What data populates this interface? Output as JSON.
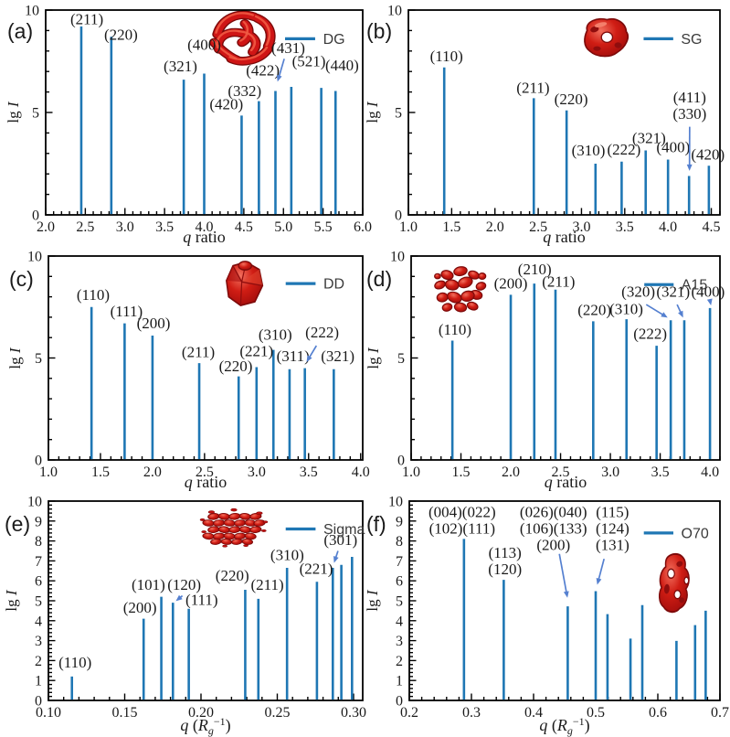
{
  "figure": {
    "bar_color": "#1f77b4",
    "arrow_color": "#5580d0",
    "frame_color": "#000000",
    "label_color": "#1a1a1a",
    "legend_text_color": "#3a3a3a",
    "inset_red": "#d01d14"
  },
  "chart_data": [
    {
      "id": "a",
      "type": "bar",
      "letter": "(a)",
      "legend": "O_DG",
      "legend_label": "DG",
      "legend_v": 8.6,
      "xlabel": "q ratio",
      "xlabel_kind": "ratio",
      "ylabel": "lg I",
      "xlim": [
        2.0,
        6.0
      ],
      "ylim": [
        0,
        10
      ],
      "xtick_start": 2.0,
      "xtick_step": 0.5,
      "xtick_end": 6.0,
      "xtick_decimals": 1,
      "x_minor_step": 0.1,
      "ytick_step": 5,
      "y_minor_step": 1,
      "bars": [
        {
          "q": 2.449,
          "h": 9.2,
          "hkl": "(211)"
        },
        {
          "q": 2.828,
          "h": 8.7,
          "hkl": "(220)"
        },
        {
          "q": 3.742,
          "h": 6.6,
          "hkl": "(321)"
        },
        {
          "q": 4.0,
          "h": 6.9,
          "hkl": "(400)"
        },
        {
          "q": 4.472,
          "h": 4.85,
          "hkl": "(420)"
        },
        {
          "q": 4.69,
          "h": 5.55,
          "hkl": "(332)"
        },
        {
          "q": 4.899,
          "h": 6.05,
          "hkl": "(422)"
        },
        {
          "q": 5.099,
          "h": 6.25,
          "hkl": "(431)"
        },
        {
          "q": 5.477,
          "h": 6.2,
          "hkl": "(521)"
        },
        {
          "q": 5.657,
          "h": 6.05,
          "hkl": "(440)"
        }
      ],
      "labels": [
        {
          "lines": [
            "(211)"
          ],
          "x": 2.52,
          "y": 9.3
        },
        {
          "lines": [
            "(220)"
          ],
          "x": 2.95,
          "y": 8.55
        },
        {
          "lines": [
            "(321)"
          ],
          "x": 3.7,
          "y": 7.0
        },
        {
          "lines": [
            "(400)"
          ],
          "x": 4.0,
          "y": 8.05
        },
        {
          "lines": [
            "(420)"
          ],
          "x": 4.28,
          "y": 5.15
        },
        {
          "lines": [
            "(332)"
          ],
          "x": 4.51,
          "y": 5.8
        },
        {
          "lines": [
            "(422)"
          ],
          "x": 4.74,
          "y": 6.8
        },
        {
          "lines": [
            "(431)"
          ],
          "x": 5.06,
          "y": 7.9
        },
        {
          "lines": [
            "(521)"
          ],
          "x": 5.32,
          "y": 7.25
        },
        {
          "lines": [
            "(440)"
          ],
          "x": 5.74,
          "y": 7.05
        }
      ],
      "arrows": [
        {
          "x1": 5.01,
          "y1": 7.62,
          "x2": 4.925,
          "y2": 6.5
        }
      ]
    },
    {
      "id": "b",
      "type": "bar",
      "letter": "(b)",
      "legend_label": "SG",
      "legend_v": 8.6,
      "xlabel": "q ratio",
      "xlabel_kind": "ratio",
      "ylabel": "lg I",
      "xlim": [
        1.0,
        4.6
      ],
      "ylim": [
        0,
        10
      ],
      "xtick_start": 1.0,
      "xtick_step": 0.5,
      "xtick_end": 4.5,
      "xtick_decimals": 1,
      "x_minor_step": 0.1,
      "ytick_step": 5,
      "y_minor_step": 1,
      "bars": [
        {
          "q": 1.414,
          "h": 7.2,
          "hkl": "(110)"
        },
        {
          "q": 2.449,
          "h": 5.7,
          "hkl": "(211)"
        },
        {
          "q": 2.828,
          "h": 5.1,
          "hkl": "(220)"
        },
        {
          "q": 3.162,
          "h": 2.5,
          "hkl": "(310)"
        },
        {
          "q": 3.464,
          "h": 2.6,
          "hkl": "(222)"
        },
        {
          "q": 3.742,
          "h": 3.15,
          "hkl": "(321)"
        },
        {
          "q": 4.0,
          "h": 2.7,
          "hkl": "(400)"
        },
        {
          "q": 4.243,
          "h": 1.9,
          "hkl": "(411)(330)"
        },
        {
          "q": 4.472,
          "h": 2.4,
          "hkl": "(420)"
        }
      ],
      "labels": [
        {
          "lines": [
            "(110)"
          ],
          "x": 1.44,
          "y": 7.5
        },
        {
          "lines": [
            "(211)"
          ],
          "x": 2.44,
          "y": 5.95
        },
        {
          "lines": [
            "(220)"
          ],
          "x": 2.88,
          "y": 5.4
        },
        {
          "lines": [
            "(310)"
          ],
          "x": 3.08,
          "y": 2.9
        },
        {
          "lines": [
            "(222)"
          ],
          "x": 3.49,
          "y": 2.95
        },
        {
          "lines": [
            "(321)"
          ],
          "x": 3.78,
          "y": 3.5
        },
        {
          "lines": [
            "(400)"
          ],
          "x": 4.06,
          "y": 3.05
        },
        {
          "lines": [
            "(411)",
            "(330)"
          ],
          "x": 4.25,
          "y": 5.5
        },
        {
          "lines": [
            "(420)"
          ],
          "x": 4.46,
          "y": 2.7
        }
      ],
      "arrows": [
        {
          "x1": 4.25,
          "y1": 4.3,
          "x2": 4.248,
          "y2": 2.15
        }
      ]
    },
    {
      "id": "c",
      "type": "bar",
      "letter": "(c)",
      "legend_label": "DD",
      "legend_v": 8.65,
      "xlabel": "q ratio",
      "xlabel_kind": "ratio",
      "ylabel": "lg I",
      "xlim": [
        1.0,
        4.02
      ],
      "ylim": [
        0,
        10
      ],
      "xtick_start": 1.0,
      "xtick_step": 0.5,
      "xtick_end": 4.0,
      "xtick_decimals": 1,
      "x_minor_step": 0.1,
      "ytick_step": 5,
      "y_minor_step": 1,
      "bars": [
        {
          "q": 1.414,
          "h": 7.5,
          "hkl": "(110)"
        },
        {
          "q": 1.732,
          "h": 6.7,
          "hkl": "(111)"
        },
        {
          "q": 2.0,
          "h": 6.1,
          "hkl": "(200)"
        },
        {
          "q": 2.449,
          "h": 4.75,
          "hkl": "(211)"
        },
        {
          "q": 2.828,
          "h": 4.1,
          "hkl": "(220)"
        },
        {
          "q": 3.0,
          "h": 4.55,
          "hkl": "(221)"
        },
        {
          "q": 3.162,
          "h": 5.4,
          "hkl": "(310)"
        },
        {
          "q": 3.317,
          "h": 4.45,
          "hkl": "(311)"
        },
        {
          "q": 3.464,
          "h": 4.5,
          "hkl": "(222)"
        },
        {
          "q": 3.742,
          "h": 4.45,
          "hkl": "(321)"
        }
      ],
      "labels": [
        {
          "lines": [
            "(110)"
          ],
          "x": 1.43,
          "y": 7.85
        },
        {
          "lines": [
            "(111)"
          ],
          "x": 1.75,
          "y": 7.05
        },
        {
          "lines": [
            "(200)"
          ],
          "x": 2.01,
          "y": 6.45
        },
        {
          "lines": [
            "(211)"
          ],
          "x": 2.44,
          "y": 5.05
        },
        {
          "lines": [
            "(220)"
          ],
          "x": 2.8,
          "y": 4.35
        },
        {
          "lines": [
            "(221)"
          ],
          "x": 3.0,
          "y": 5.1
        },
        {
          "lines": [
            "(310)"
          ],
          "x": 3.18,
          "y": 5.9
        },
        {
          "lines": [
            "(311)"
          ],
          "x": 3.35,
          "y": 4.85
        },
        {
          "lines": [
            "(222)"
          ],
          "x": 3.63,
          "y": 6.0
        },
        {
          "lines": [
            "(321)"
          ],
          "x": 3.78,
          "y": 4.85
        }
      ],
      "arrows": [
        {
          "x1": 3.575,
          "y1": 5.6,
          "x2": 3.48,
          "y2": 4.8
        }
      ]
    },
    {
      "id": "d",
      "type": "bar",
      "letter": "(d)",
      "legend_label": "A15",
      "legend_v": 8.6,
      "xlabel": "q ratio",
      "xlabel_kind": "ratio",
      "ylabel": "lg I",
      "xlim": [
        1.0,
        4.1
      ],
      "ylim": [
        0,
        10
      ],
      "xtick_start": 1.0,
      "xtick_step": 0.5,
      "xtick_end": 4.0,
      "xtick_decimals": 1,
      "x_minor_step": 0.1,
      "ytick_step": 5,
      "y_minor_step": 1,
      "bars": [
        {
          "q": 1.414,
          "h": 5.85,
          "hkl": "(110)"
        },
        {
          "q": 2.0,
          "h": 8.1,
          "hkl": "(200)"
        },
        {
          "q": 2.236,
          "h": 8.65,
          "hkl": "(210)"
        },
        {
          "q": 2.449,
          "h": 8.35,
          "hkl": "(211)"
        },
        {
          "q": 2.828,
          "h": 6.8,
          "hkl": "(220)"
        },
        {
          "q": 3.162,
          "h": 6.9,
          "hkl": "(310)"
        },
        {
          "q": 3.464,
          "h": 5.6,
          "hkl": "(222)"
        },
        {
          "q": 3.606,
          "h": 6.85,
          "hkl": "(320)"
        },
        {
          "q": 3.742,
          "h": 6.85,
          "hkl": "(321)"
        },
        {
          "q": 4.0,
          "h": 7.45,
          "hkl": "(400)"
        }
      ],
      "labels": [
        {
          "lines": [
            "(110)"
          ],
          "x": 1.44,
          "y": 6.15
        },
        {
          "lines": [
            "(200)"
          ],
          "x": 2.0,
          "y": 8.4
        },
        {
          "lines": [
            "(210)"
          ],
          "x": 2.24,
          "y": 9.1
        },
        {
          "lines": [
            "(211)"
          ],
          "x": 2.48,
          "y": 8.5
        },
        {
          "lines": [
            "(220)"
          ],
          "x": 2.84,
          "y": 7.1
        },
        {
          "lines": [
            "(310)"
          ],
          "x": 3.16,
          "y": 7.15
        },
        {
          "lines": [
            "(222)"
          ],
          "x": 3.4,
          "y": 5.95
        },
        {
          "lines": [
            "(320)"
          ],
          "x": 3.28,
          "y": 8.0
        },
        {
          "lines": [
            "(321)"
          ],
          "x": 3.63,
          "y": 8.0
        },
        {
          "lines": [
            "(400)"
          ],
          "x": 3.98,
          "y": 8.0
        }
      ],
      "arrows": [
        {
          "x1": 3.36,
          "y1": 7.62,
          "x2": 3.575,
          "y2": 6.98
        },
        {
          "x1": 3.67,
          "y1": 7.62,
          "x2": 3.73,
          "y2": 6.98
        },
        {
          "x1": 4.0,
          "y1": 7.82,
          "x2": 4.01,
          "y2": 7.58
        }
      ]
    },
    {
      "id": "e",
      "type": "bar",
      "letter": "(e)",
      "legend_label": "Sigma",
      "legend_v": 8.6,
      "xlabel": "q (Rg^-1)",
      "xlabel_kind": "rg",
      "ylabel": "lg I",
      "xlim": [
        0.1,
        0.306
      ],
      "ylim": [
        0,
        10
      ],
      "xtick_start": 0.1,
      "xtick_step": 0.05,
      "xtick_end": 0.3,
      "xtick_decimals": 2,
      "x_minor_step": 0.01,
      "ytick_step": 1,
      "y_minor_step": 0.2,
      "bars": [
        {
          "q": 0.1154,
          "h": 1.2,
          "hkl": "(110)"
        },
        {
          "q": 0.1624,
          "h": 4.1,
          "hkl": "(200)"
        },
        {
          "q": 0.174,
          "h": 5.2,
          "hkl": "(101)"
        },
        {
          "q": 0.1816,
          "h": 4.9,
          "hkl": "(120)"
        },
        {
          "q": 0.192,
          "h": 4.6,
          "hkl": "(111)"
        },
        {
          "q": 0.229,
          "h": 5.55,
          "hkl": "(220)"
        },
        {
          "q": 0.2376,
          "h": 5.1,
          "hkl": "(211)"
        },
        {
          "q": 0.2564,
          "h": 6.65,
          "hkl": "(310)"
        },
        {
          "q": 0.276,
          "h": 5.95,
          "hkl": "(221)"
        },
        {
          "q": 0.2864,
          "h": 6.65,
          "hkl": "(301)"
        },
        {
          "q": 0.292,
          "h": 6.8,
          "hkl": ""
        },
        {
          "q": 0.299,
          "h": 7.2,
          "hkl": ""
        }
      ],
      "labels": [
        {
          "lines": [
            "(110)"
          ],
          "x": 0.1175,
          "y": 1.65
        },
        {
          "lines": [
            "(200)"
          ],
          "x": 0.16,
          "y": 4.4
        },
        {
          "lines": [
            "(101)"
          ],
          "x": 0.1655,
          "y": 5.55
        },
        {
          "lines": [
            "(120)"
          ],
          "x": 0.189,
          "y": 5.55
        },
        {
          "lines": [
            "(111)"
          ],
          "x": 0.2005,
          "y": 4.8
        },
        {
          "lines": [
            "(220)"
          ],
          "x": 0.2205,
          "y": 6.0
        },
        {
          "lines": [
            "(211)"
          ],
          "x": 0.2435,
          "y": 5.55
        },
        {
          "lines": [
            "(310)"
          ],
          "x": 0.2565,
          "y": 7.05
        },
        {
          "lines": [
            "(221)"
          ],
          "x": 0.2755,
          "y": 6.35
        },
        {
          "lines": [
            "(301)"
          ],
          "x": 0.2915,
          "y": 7.8
        }
      ],
      "arrows": [
        {
          "x1": 0.1878,
          "y1": 5.25,
          "x2": 0.1835,
          "y2": 4.98
        },
        {
          "x1": 0.2898,
          "y1": 7.5,
          "x2": 0.2872,
          "y2": 6.9
        }
      ]
    },
    {
      "id": "f",
      "type": "bar",
      "letter": "(f)",
      "legend_label": "O70",
      "legend_v": 8.4,
      "xlabel": "q (Rg^-1)",
      "xlabel_kind": "rg",
      "ylabel": "lg I",
      "xlim": [
        0.2,
        0.7
      ],
      "ylim": [
        0,
        10
      ],
      "xtick_start": 0.2,
      "xtick_step": 0.1,
      "xtick_end": 0.7,
      "xtick_decimals": 1,
      "x_minor_step": 0.02,
      "ytick_step": 1,
      "y_minor_step": 0.2,
      "bars": [
        {
          "q": 0.288,
          "h": 8.1,
          "hkl": "(004)(022)(102)(111)"
        },
        {
          "q": 0.352,
          "h": 6.05,
          "hkl": "(113)(120)"
        },
        {
          "q": 0.455,
          "h": 4.72,
          "hkl": "(026)(040)(106)(133)(200)"
        },
        {
          "q": 0.5,
          "h": 5.48,
          "hkl": "(115)(124)(131)"
        },
        {
          "q": 0.519,
          "h": 4.33,
          "hkl": ""
        },
        {
          "q": 0.556,
          "h": 3.1,
          "hkl": ""
        },
        {
          "q": 0.575,
          "h": 4.78,
          "hkl": ""
        },
        {
          "q": 0.63,
          "h": 2.99,
          "hkl": ""
        },
        {
          "q": 0.66,
          "h": 3.78,
          "hkl": ""
        },
        {
          "q": 0.677,
          "h": 4.5,
          "hkl": ""
        }
      ],
      "labels": [
        {
          "lines": [
            "(004)(022)",
            "(102)(111)"
          ],
          "x": 0.285,
          "y": 9.2
        },
        {
          "lines": [
            "(113)",
            "(120)"
          ],
          "x": 0.354,
          "y": 7.15
        },
        {
          "lines": [
            "(026)(040)",
            "(106)(133)",
            "(200)"
          ],
          "x": 0.432,
          "y": 9.2
        },
        {
          "lines": [
            "(115)",
            "(124)",
            "(131)"
          ],
          "x": 0.527,
          "y": 9.2
        }
      ],
      "arrows": [
        {
          "x1": 0.4415,
          "y1": 7.35,
          "x2": 0.4545,
          "y2": 5.15
        },
        {
          "x1": 0.5135,
          "y1": 7.1,
          "x2": 0.5025,
          "y2": 5.8
        }
      ]
    }
  ]
}
